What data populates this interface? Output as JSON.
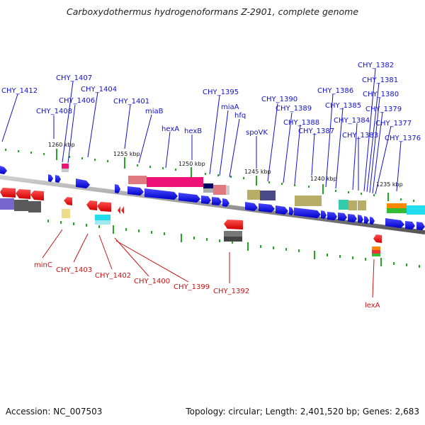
{
  "title": "Carboxydothermus hydrogenoformans Z-2901, complete genome",
  "footer": {
    "accession": "Accession: NC_007503",
    "summary": "Topology: circular; Length: 2,401,520 bp; Genes: 2,683"
  },
  "scale_labels": [
    "1260 kbp",
    "1255 kbp",
    "1250 kbp",
    "1245 kbp",
    "1240 kbp",
    "1235 kbp"
  ],
  "forward_genes": [
    "CHY_1412",
    "CHY_1407",
    "CHY_1406",
    "CHY_1408",
    "CHY_1404",
    "CHY_1401",
    "miaB",
    "hexA",
    "hexB",
    "CHY_1395",
    "miaA",
    "hfq",
    "spoVK",
    "CHY_1390",
    "CHY_1389",
    "CHY_1388",
    "CHY_1387",
    "CHY_1386",
    "CHY_1385",
    "CHY_1384",
    "CHY_1383",
    "CHY_1382",
    "CHY_1381",
    "CHY_1380",
    "CHY_1379",
    "CHY_1377",
    "CHY_1376"
  ],
  "reverse_genes": [
    "minC",
    "CHY_1403",
    "CHY_1402",
    "CHY_1400",
    "CHY_1399",
    "CHY_1392",
    "lexA"
  ],
  "colors": {
    "forward": "#1a1aff",
    "reverse": "#ee1111",
    "backbone": "#888888",
    "tick": "#22aa22"
  }
}
